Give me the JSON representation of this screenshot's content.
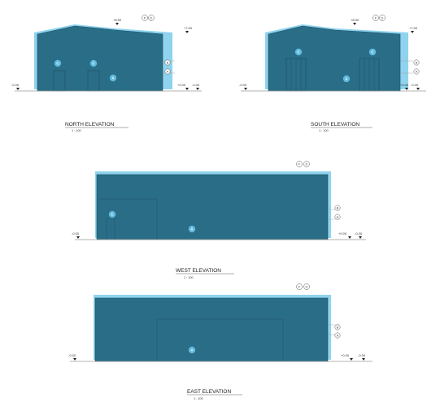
{
  "colors": {
    "facade": "#2a6d86",
    "roof_trim": "#8fd3ee",
    "outline": "#1c4f63",
    "ground": "#9a9a9a",
    "marker": "#5fb9de"
  },
  "drawings": [
    {
      "id": "north",
      "title": "NORTH ELEVATION",
      "scale": "1 : 100",
      "levels": {
        "left": "-0.00",
        "right": "+0.00",
        "far_right": "-0.00",
        "top_ridge": "+8.50",
        "top_eave": "+7.00"
      },
      "grid_tags": [
        "F",
        "D"
      ],
      "side_tags": [
        "B",
        "A"
      ],
      "markers": [
        "C",
        "C",
        "A"
      ]
    },
    {
      "id": "south",
      "title": "SOUTH ELEVATION",
      "scale": "1 : 100",
      "levels": {
        "left": "-0.00",
        "right": "+0.00",
        "far_right": "-0.00",
        "top_ridge": "+8.50",
        "top_eave": "+7.00"
      },
      "grid_tags": [
        "F",
        "D"
      ],
      "side_tags": [
        "B",
        "A"
      ],
      "markers": [
        "C",
        "C",
        "A"
      ]
    },
    {
      "id": "west",
      "title": "WEST ELEVATION",
      "scale": "1 : 100",
      "levels": {
        "left": "-0.00",
        "right": "+0.00",
        "far_right": "-0.00"
      },
      "grid_tags": [
        "F",
        "D"
      ],
      "side_tags": [
        "B",
        "A"
      ],
      "markers": [
        "C",
        "A"
      ]
    },
    {
      "id": "east",
      "title": "EAST ELEVATION",
      "scale": "1 : 100",
      "levels": {
        "left": "-0.00",
        "right": "+0.00",
        "far_right": "-0.00"
      },
      "grid_tags": [
        "F",
        "D"
      ],
      "side_tags": [
        "B",
        "A"
      ],
      "markers": [
        "A"
      ]
    }
  ]
}
